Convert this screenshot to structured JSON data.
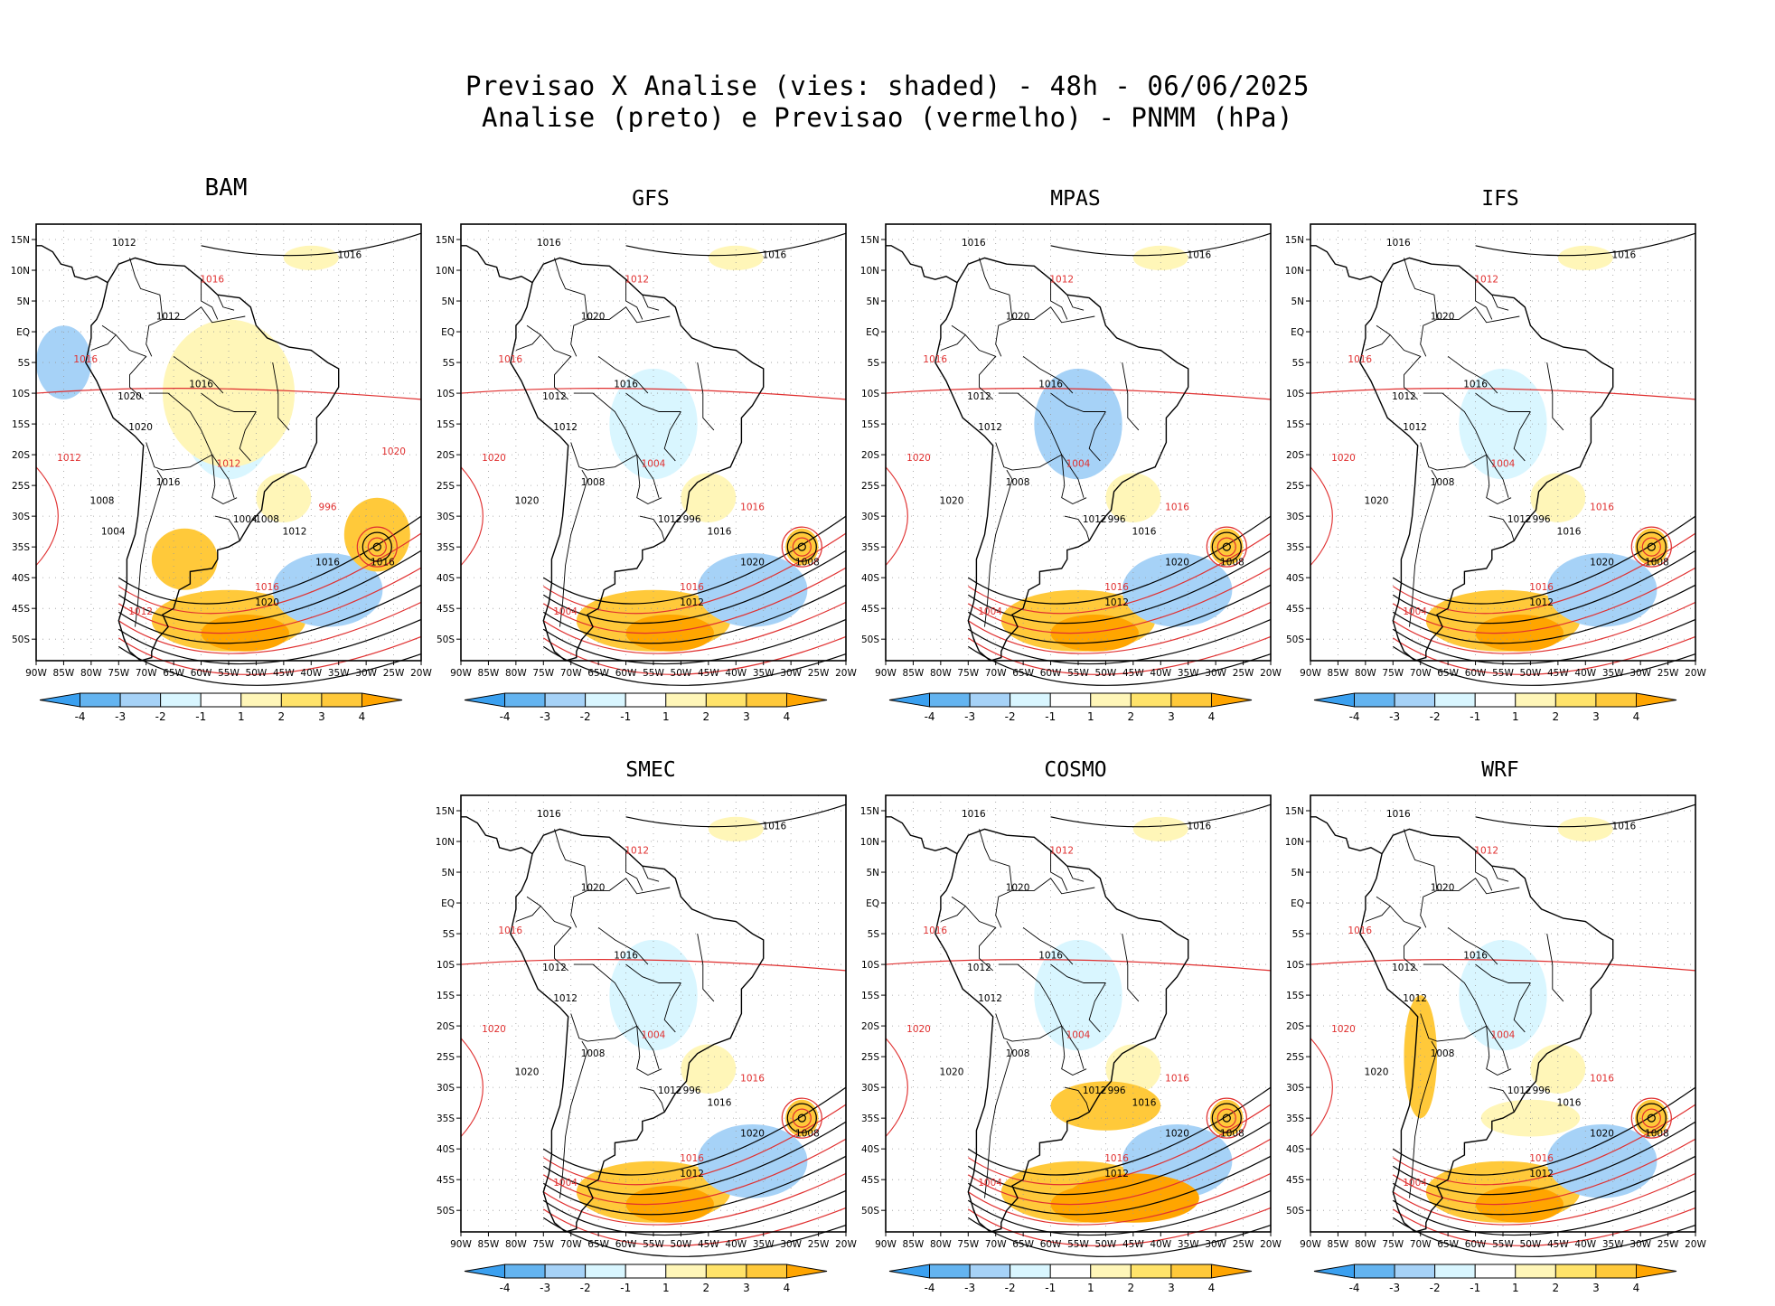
{
  "title_line1": "Previsao X Analise (vies: shaded) - 48h - 06/06/2025",
  "title_line2": "Analise (preto) e Previsao (vermelho) - PNMM (hPa)",
  "lat_ticks": [
    "15N",
    "10N",
    "5N",
    "EQ",
    "5S",
    "10S",
    "15S",
    "20S",
    "25S",
    "30S",
    "35S",
    "40S",
    "45S",
    "50S"
  ],
  "lon_ticks": [
    "90W",
    "85W",
    "80W",
    "75W",
    "70W",
    "65W",
    "60W",
    "55W",
    "50W",
    "45W",
    "40W",
    "35W",
    "30W",
    "25W",
    "20W"
  ],
  "colorbar_ticks": [
    "-4",
    "-3",
    "-2",
    "-1",
    "1",
    "2",
    "3",
    "4"
  ],
  "colorbar_colors": [
    "#3aa0f0",
    "#64b4f0",
    "#a6d2f7",
    "#d9f6ff",
    "#ffffff",
    "#fff6b8",
    "#ffe36a",
    "#ffc93a",
    "#ffa500"
  ],
  "colors": {
    "analysis_contour": "#000000",
    "forecast_contour": "#e03030",
    "coast": "#000000"
  },
  "panels": [
    {
      "model": "BAM",
      "isobars": [
        "1012",
        "1016",
        "1016",
        "1012",
        "1016",
        "1020",
        "1016",
        "1012",
        "1020",
        "1016",
        "1012",
        "1008",
        "1004",
        "996",
        "1012",
        "1016",
        "1016",
        "1020",
        "1016",
        "1012",
        "1008",
        "1004",
        "1020"
      ]
    },
    {
      "model": "GFS",
      "isobars": [
        "1016",
        "1012",
        "1016",
        "1020",
        "1016",
        "1012",
        "1016",
        "1020",
        "1012",
        "1008",
        "1004",
        "996",
        "1012",
        "1016",
        "1016",
        "1020",
        "1016",
        "1012",
        "1008",
        "1004",
        "1020"
      ]
    },
    {
      "model": "MPAS",
      "isobars": [
        "1016",
        "1012",
        "1016",
        "1020",
        "1016",
        "1012",
        "1016",
        "1020",
        "1012",
        "1008",
        "1004",
        "996",
        "1012",
        "1016",
        "1016",
        "1020",
        "1016",
        "1012",
        "1008",
        "1004",
        "1020"
      ]
    },
    {
      "model": "IFS",
      "isobars": [
        "1016",
        "1012",
        "1016",
        "1020",
        "1016",
        "1012",
        "1016",
        "1020",
        "1012",
        "1008",
        "1004",
        "996",
        "1012",
        "1016",
        "1016",
        "1020",
        "1016",
        "1012",
        "1008",
        "1004",
        "1020"
      ]
    },
    {
      "model": "SMEC",
      "isobars": [
        "1016",
        "1012",
        "1016",
        "1020",
        "1016",
        "1012",
        "1016",
        "1020",
        "1012",
        "1008",
        "1004",
        "996",
        "1012",
        "1016",
        "1016",
        "1020",
        "1016",
        "1012",
        "1008",
        "1004",
        "1020"
      ]
    },
    {
      "model": "COSMO",
      "isobars": [
        "1016",
        "1012",
        "1016",
        "1020",
        "1016",
        "1012",
        "1016",
        "1020",
        "1012",
        "1008",
        "1004",
        "996",
        "1012",
        "1016",
        "1016",
        "1020",
        "1016",
        "1012",
        "1008",
        "1004",
        "1020"
      ]
    },
    {
      "model": "WRF",
      "isobars": [
        "1016",
        "1012",
        "1016",
        "1020",
        "1016",
        "1012",
        "1016",
        "1020",
        "1012",
        "1008",
        "1004",
        "996",
        "1012",
        "1016",
        "1016",
        "1020",
        "1016",
        "1012",
        "1008",
        "1004",
        "1020"
      ]
    }
  ]
}
